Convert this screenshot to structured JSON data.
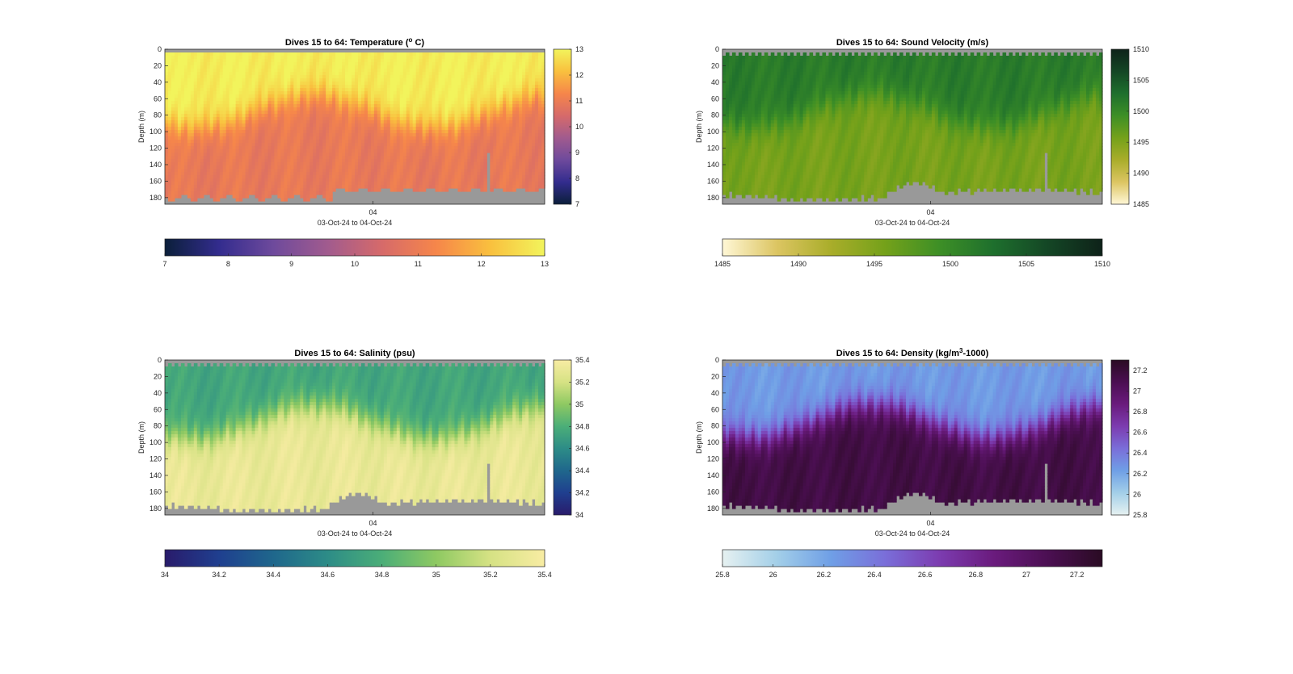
{
  "gradients": {
    "thermal": [
      "#0b1f3a",
      "#332c8e",
      "#6e4a9c",
      "#a15b8e",
      "#d66a6a",
      "#f6864a",
      "#f9c03e",
      "#f2f45c"
    ],
    "speed": [
      "#fff7d6",
      "#dcc562",
      "#a9ad2a",
      "#74a11a",
      "#3d8f26",
      "#1e6f2d",
      "#144625",
      "#0e2219"
    ],
    "haline": [
      "#291b6b",
      "#1f3f8f",
      "#1f678c",
      "#2d8c87",
      "#4bae78",
      "#8ec962",
      "#d6e284",
      "#f8eca3"
    ],
    "dense": [
      "#e6f1f1",
      "#a3cfe8",
      "#6f9fe6",
      "#7a6ed9",
      "#7c3cb0",
      "#6a1b7d",
      "#4b0f52",
      "#2a0b23"
    ]
  },
  "colors": {
    "mask_gray": "#999999"
  },
  "chart_data": [
    {
      "type": "heatmap",
      "title": "Dives 15 to 64: Temperature (",
      "title_sup": "o",
      "title_after": " C)",
      "ylabel": "Depth (m)",
      "xlabel": "03-Oct-24 to 04-Oct-24",
      "xticks": [
        "04"
      ],
      "yticks": [
        "0",
        "20",
        "40",
        "60",
        "80",
        "100",
        "120",
        "140",
        "160",
        "180"
      ],
      "ylim": [
        0,
        188
      ],
      "colormap": "thermal",
      "clim": [
        7,
        13
      ],
      "side_colorbar_ticks": [
        "7",
        "8",
        "9",
        "10",
        "11",
        "12",
        "13"
      ],
      "bottom_colorbar_ticks": [
        "7",
        "8",
        "9",
        "10",
        "11",
        "12",
        "13"
      ],
      "profile_regime": {
        "surface_value": 12.9,
        "deep_value": 10.9,
        "mixed_layer_depth_m": [
          55,
          95
        ]
      }
    },
    {
      "type": "heatmap",
      "title": "Dives 15 to 64: Sound Velocity (m/s)",
      "ylabel": "Depth (m)",
      "xlabel": "03-Oct-24 to 04-Oct-24",
      "xticks": [
        "04"
      ],
      "yticks": [
        "0",
        "20",
        "40",
        "60",
        "80",
        "100",
        "120",
        "140",
        "160",
        "180"
      ],
      "ylim": [
        0,
        188
      ],
      "colormap": "speed",
      "clim": [
        1485,
        1510
      ],
      "side_colorbar_ticks": [
        "1485",
        "1490",
        "1495",
        "1500",
        "1505",
        "1510"
      ],
      "bottom_colorbar_ticks": [
        "1485",
        "1490",
        "1495",
        "1500",
        "1505",
        "1510"
      ],
      "profile_regime": {
        "surface_value": 1501.5,
        "deep_value": 1495.5,
        "mixed_layer_depth_m": [
          55,
          95
        ]
      }
    },
    {
      "type": "heatmap",
      "title": "Dives 15 to 64: Salinity (psu)",
      "ylabel": "Depth (m)",
      "xlabel": "03-Oct-24 to 04-Oct-24",
      "xticks": [
        "04"
      ],
      "yticks": [
        "0",
        "20",
        "40",
        "60",
        "80",
        "100",
        "120",
        "140",
        "160",
        "180"
      ],
      "ylim": [
        0,
        188
      ],
      "colormap": "haline",
      "clim": [
        34,
        35.4
      ],
      "side_colorbar_ticks": [
        "34",
        "34.2",
        "34.4",
        "34.6",
        "34.8",
        "35",
        "35.2",
        "35.4"
      ],
      "bottom_colorbar_ticks": [
        "34",
        "34.2",
        "34.4",
        "34.6",
        "34.8",
        "35",
        "35.2",
        "35.4"
      ],
      "profile_regime": {
        "surface_value": 34.75,
        "deep_value": 35.32,
        "mixed_layer_depth_m": [
          55,
          95
        ]
      }
    },
    {
      "type": "heatmap",
      "title": "Dives 15 to 64: Density (kg/m",
      "title_sup": "3",
      "title_after": "-1000)",
      "ylabel": "Depth (m)",
      "xlabel": "03-Oct-24 to 04-Oct-24",
      "xticks": [
        "04"
      ],
      "yticks": [
        "0",
        "20",
        "40",
        "60",
        "80",
        "100",
        "120",
        "140",
        "160",
        "180"
      ],
      "ylim": [
        0,
        188
      ],
      "colormap": "dense",
      "clim": [
        25.8,
        27.3
      ],
      "side_colorbar_ticks": [
        "25.8",
        "26",
        "26.2",
        "26.4",
        "26.6",
        "26.8",
        "27",
        "27.2"
      ],
      "bottom_colorbar_ticks": [
        "25.8",
        "26",
        "26.2",
        "26.4",
        "26.6",
        "26.8",
        "27",
        "27.2"
      ],
      "profile_regime": {
        "surface_value": 26.25,
        "deep_value": 27.15,
        "mixed_layer_depth_m": [
          55,
          95
        ]
      }
    }
  ]
}
